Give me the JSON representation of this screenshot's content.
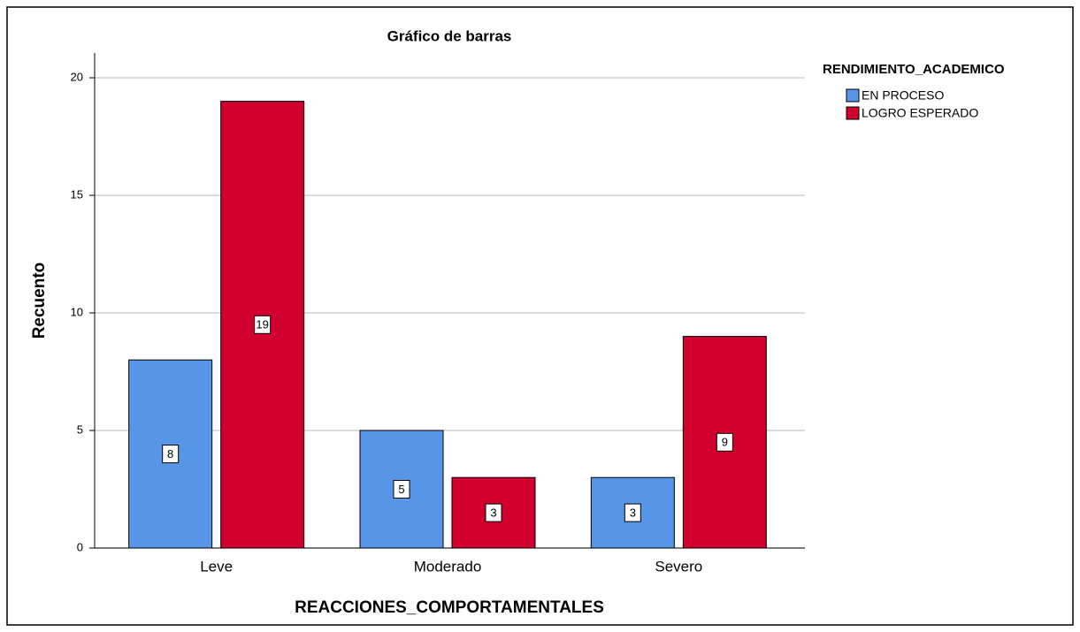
{
  "chart_data": {
    "type": "bar",
    "title": "Gráfico de barras",
    "x_label": "REACCIONES_COMPORTAMENTALES",
    "y_label": "Recuento",
    "legend_title": "RENDIMIENTO_ACADEMICO",
    "categories": [
      "Leve",
      "Moderado",
      "Severo"
    ],
    "series": [
      {
        "name": "EN PROCESO",
        "color": "#5795e6",
        "values": [
          8,
          5,
          3
        ]
      },
      {
        "name": "LOGRO ESPERADO",
        "color": "#d2002e",
        "values": [
          19,
          3,
          9
        ]
      }
    ],
    "ylim": [
      0,
      20
    ],
    "yticks": [
      0,
      5,
      10,
      15,
      20
    ],
    "grid": true,
    "legend": "right"
  }
}
